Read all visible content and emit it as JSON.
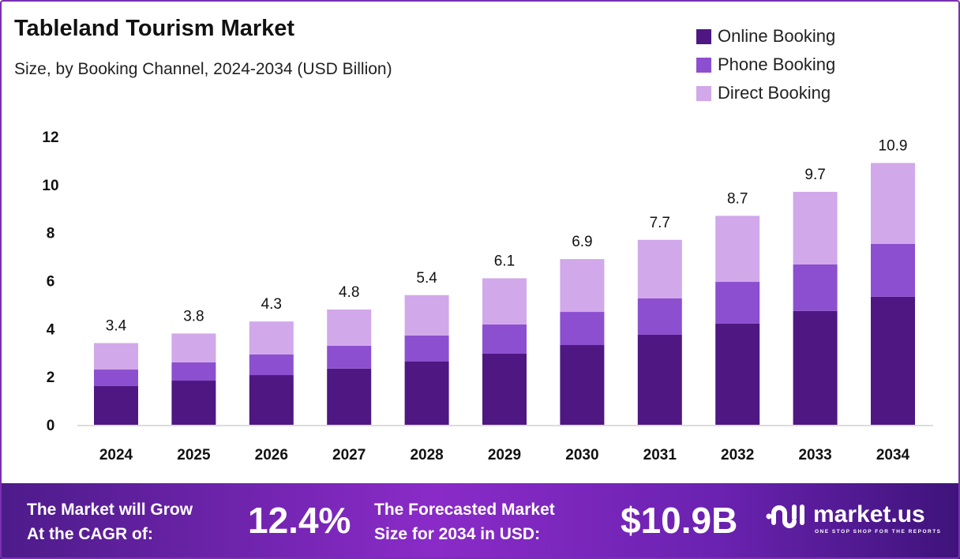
{
  "chart_data": {
    "type": "bar",
    "stacked": true,
    "title": "Tableland Tourism Market",
    "subtitle": "Size, by Booking Channel, 2024-2034 (USD Billion)",
    "categories": [
      "2024",
      "2025",
      "2026",
      "2027",
      "2028",
      "2029",
      "2030",
      "2031",
      "2032",
      "2033",
      "2034"
    ],
    "series": [
      {
        "name": "Online Booking",
        "color": "#4e1782",
        "values": [
          1.61,
          1.84,
          2.07,
          2.34,
          2.63,
          2.96,
          3.32,
          3.75,
          4.21,
          4.74,
          5.33
        ]
      },
      {
        "name": "Phone Booking",
        "color": "#8c4fcf",
        "values": [
          0.69,
          0.76,
          0.86,
          0.95,
          1.09,
          1.22,
          1.38,
          1.51,
          1.74,
          1.94,
          2.2
        ]
      },
      {
        "name": "Direct Booking",
        "color": "#d1a8ea",
        "values": [
          1.1,
          1.2,
          1.37,
          1.51,
          1.68,
          1.92,
          2.2,
          2.44,
          2.75,
          3.02,
          3.37
        ]
      }
    ],
    "totals": [
      "3.4",
      "3.8",
      "4.3",
      "4.8",
      "5.4",
      "6.1",
      "6.9",
      "7.7",
      "8.7",
      "9.7",
      "10.9"
    ],
    "yticks": [
      "0",
      "2",
      "4",
      "6",
      "8",
      "10",
      "12"
    ],
    "ylim": [
      0,
      12
    ],
    "grid": false,
    "legend": "top-right"
  },
  "footer": {
    "cagr_label_1": "The Market will Grow",
    "cagr_label_2": "At the CAGR of:",
    "cagr_value": "12.4%",
    "forecast_label_1": "The Forecasted Market",
    "forecast_label_2": "Size for 2034 in USD:",
    "forecast_value": "$10.9B",
    "logo_text": "market.us",
    "logo_tagline": "ONE STOP SHOP FOR THE REPORTS"
  }
}
